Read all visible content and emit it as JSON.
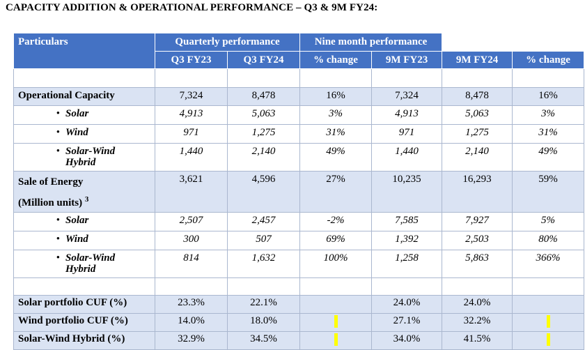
{
  "title": "CAPACITY ADDITION & OPERATIONAL PERFORMANCE – Q3 & 9M FY24:",
  "header": {
    "particulars": "Particulars",
    "quarterly": "Quarterly performance",
    "nine_month": "Nine month performance",
    "columns": [
      "Q3 FY23",
      "Q3 FY24",
      "% change",
      "9M FY23",
      "9M FY24",
      "% change"
    ]
  },
  "operational_capacity": {
    "label": "Operational Capacity",
    "values": [
      "7,324",
      "8,478",
      "16%",
      "7,324",
      "8,478",
      "16%"
    ],
    "rows": [
      {
        "bullet": "•",
        "label": "Solar",
        "values": [
          "4,913",
          "5,063",
          "3%",
          "4,913",
          "5,063",
          "3%"
        ]
      },
      {
        "bullet": "•",
        "label": "Wind",
        "values": [
          "971",
          "1,275",
          "31%",
          "971",
          "1,275",
          "31%"
        ]
      },
      {
        "bullet": "•",
        "label": "Solar-Wind Hybrid",
        "values": [
          "1,440",
          "2,140",
          "49%",
          "1,440",
          "2,140",
          "49%"
        ]
      }
    ]
  },
  "sale_of_energy": {
    "label_line1": "Sale of Energy",
    "label_line2": "(Million units)",
    "footnote": "3",
    "values": [
      "3,621",
      "4,596",
      "27%",
      "10,235",
      "16,293",
      "59%"
    ],
    "rows": [
      {
        "bullet": "•",
        "label": "Solar",
        "values": [
          "2,507",
          "2,457",
          "-2%",
          "7,585",
          "7,927",
          "5%"
        ]
      },
      {
        "bullet": "•",
        "label": "Wind",
        "values": [
          "300",
          "507",
          "69%",
          "1,392",
          "2,503",
          "80%"
        ]
      },
      {
        "bullet": "•",
        "label": "Solar-Wind Hybrid",
        "values": [
          "814",
          "1,632",
          "100%",
          "1,258",
          "5,863",
          "366%"
        ]
      }
    ]
  },
  "cuf": [
    {
      "label": "Solar portfolio CUF (%)",
      "values": [
        "23.3%",
        "22.1%",
        "",
        "24.0%",
        "24.0%",
        ""
      ]
    },
    {
      "label": "Wind portfolio CUF (%)",
      "values": [
        "14.0%",
        "18.0%",
        "",
        "27.1%",
        "32.2%",
        ""
      ]
    },
    {
      "label": "Solar-Wind Hybrid (%)",
      "values": [
        "32.9%",
        "34.5%",
        "",
        "34.0%",
        "41.5%",
        ""
      ]
    }
  ],
  "colors": {
    "header": "#4472c4",
    "shade": "#dae3f3",
    "highlight": "#ffff00"
  }
}
